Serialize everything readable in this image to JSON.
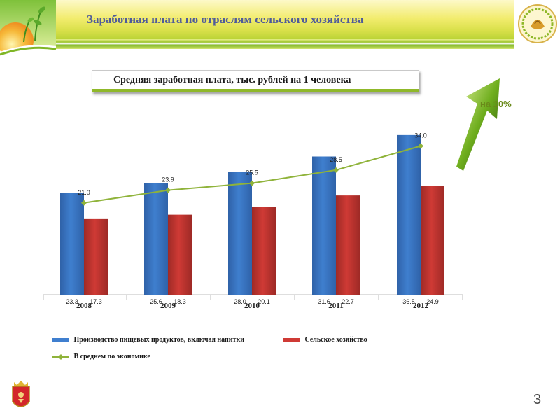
{
  "header": {
    "title": "Заработная плата по отраслям сельского хозяйства"
  },
  "subtitle": "Средняя заработная плата, тыс. рублей на 1 человека",
  "growth_label": "на 10%",
  "page_number": "3",
  "colors": {
    "food": "#3f7fcf",
    "agri": "#cf3a35",
    "avg": "#8fb33a"
  },
  "chart_data": {
    "type": "bar",
    "categories": [
      "2008",
      "2009",
      "2010",
      "2011",
      "2012"
    ],
    "series": [
      {
        "name": "Производство пищевых продуктов, включая напитки",
        "type": "bar",
        "values": [
          23.3,
          25.6,
          28.0,
          31.6,
          36.5
        ],
        "labels": [
          "23.3",
          "25.6",
          "28.0",
          "31.6",
          "36.5"
        ]
      },
      {
        "name": "Сельское хозяйство",
        "type": "bar",
        "values": [
          17.3,
          18.3,
          20.1,
          22.7,
          24.9
        ],
        "labels": [
          "17.3",
          "18.3",
          "20.1",
          "22.7",
          "24.9"
        ]
      },
      {
        "name": "В среднем по экономике",
        "type": "line",
        "values": [
          21.0,
          23.9,
          25.5,
          28.5,
          34.0
        ],
        "labels": [
          "21.0",
          "23.9",
          "25.5",
          "28.5",
          "34.0"
        ]
      }
    ],
    "ylim": [
      0,
      40
    ],
    "grid": false,
    "legend": "bottom"
  }
}
